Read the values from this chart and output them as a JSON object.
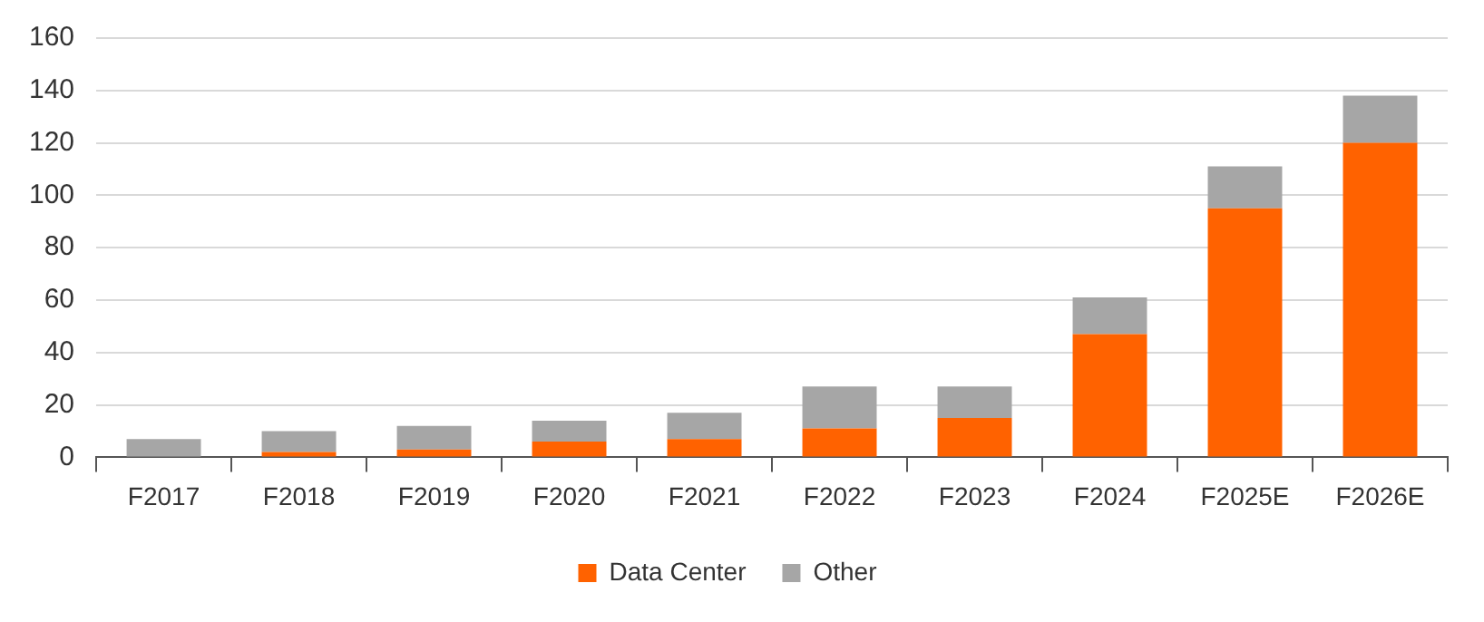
{
  "chart_data": {
    "type": "bar",
    "stacked": true,
    "categories": [
      "F2017",
      "F2018",
      "F2019",
      "F2020",
      "F2021",
      "F2022",
      "F2023",
      "F2024",
      "F2025E",
      "F2026E"
    ],
    "series": [
      {
        "name": "Data Center",
        "color": "#ff6200",
        "values": [
          0,
          2,
          3,
          6,
          7,
          11,
          15,
          47,
          95,
          120
        ]
      },
      {
        "name": "Other",
        "color": "#a6a6a6",
        "values": [
          7,
          8,
          9,
          8,
          10,
          16,
          12,
          14,
          16,
          18
        ]
      }
    ],
    "ylim": [
      0,
      160
    ],
    "yticks": [
      0,
      20,
      40,
      60,
      80,
      100,
      120,
      140,
      160
    ],
    "grid": "y",
    "legend": "bottom"
  }
}
